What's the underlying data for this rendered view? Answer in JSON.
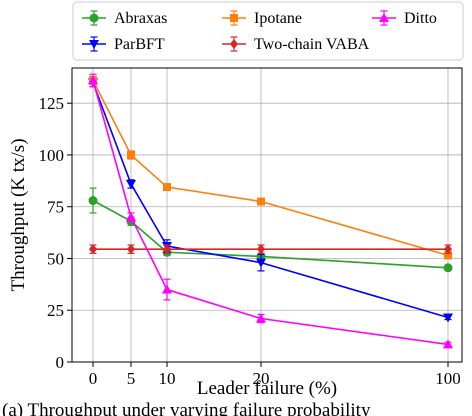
{
  "chart_data": {
    "type": "line",
    "xlabel": "Leader failure (%)",
    "ylabel": "Throughput (K tx/s)",
    "caption": "(a) Throughput under varying failure probability",
    "x_ticks": [
      "0",
      "5",
      "10",
      "20",
      "100"
    ],
    "y_ticks": [
      0,
      25,
      50,
      75,
      100,
      125
    ],
    "ylim": [
      0,
      142
    ],
    "grid": true,
    "legend_position": "top",
    "series": [
      {
        "name": "Abraxas",
        "color": "#2ca02c",
        "marker": "circle",
        "values": [
          78,
          68,
          53,
          51,
          45.5
        ],
        "errors": [
          6,
          2,
          1.5,
          1,
          1
        ]
      },
      {
        "name": "ParBFT",
        "color": "#0000ff",
        "marker": "triangle-down",
        "values": [
          135,
          86,
          56,
          48,
          21.5
        ],
        "errors": [
          2,
          2,
          3,
          4,
          1
        ]
      },
      {
        "name": "Ipotane",
        "color": "#ff7f0e",
        "marker": "square",
        "values": [
          136,
          100,
          84.5,
          77.5,
          51.5
        ],
        "errors": [
          2,
          2,
          1,
          1,
          1.5
        ]
      },
      {
        "name": "Two-chain VABA",
        "color": "#d62728",
        "marker": "diamond",
        "values": [
          54.5,
          54.5,
          54.5,
          54.5,
          54.5
        ],
        "errors": [
          2,
          2,
          2,
          2,
          2
        ]
      },
      {
        "name": "Ditto",
        "color": "#ff00ff",
        "marker": "triangle-up",
        "values": [
          136,
          70,
          35,
          21,
          8.5
        ],
        "errors": [
          3,
          2,
          5,
          2,
          1
        ]
      }
    ]
  }
}
